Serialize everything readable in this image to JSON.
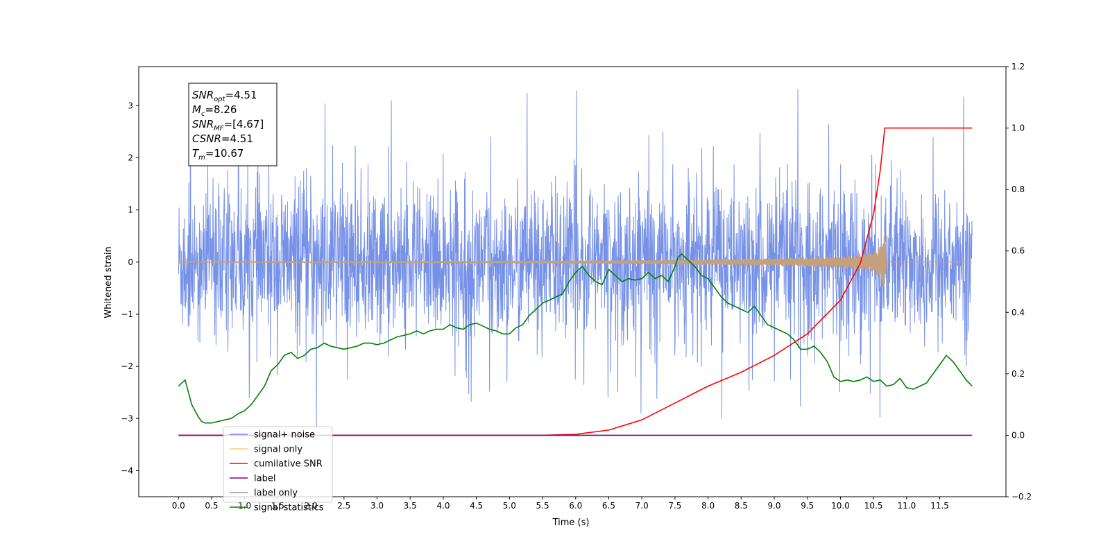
{
  "chart_data": {
    "type": "line",
    "xlabel": "Time (s)",
    "ylabel": "Whitened strain",
    "xlim": [
      -0.6,
      12.5
    ],
    "ylim": [
      -4.5,
      3.75
    ],
    "y2lim": [
      -0.2,
      1.2
    ],
    "x_ticks": [
      "0.0",
      "0.5",
      "1.0",
      "1.5",
      "2.0",
      "2.5",
      "3.0",
      "3.5",
      "4.0",
      "4.5",
      "5.0",
      "5.5",
      "6.0",
      "6.5",
      "7.0",
      "7.5",
      "8.0",
      "8.5",
      "9.0",
      "9.5",
      "10.0",
      "10.5",
      "11.0",
      "11.5"
    ],
    "x_tick_values": [
      0,
      0.5,
      1,
      1.5,
      2,
      2.5,
      3,
      3.5,
      4,
      4.5,
      5,
      5.5,
      6,
      6.5,
      7,
      7.5,
      8,
      8.5,
      9,
      9.5,
      10,
      10.5,
      11,
      11.5
    ],
    "y_ticks": [
      "3",
      "2",
      "1",
      "0",
      "−1",
      "−2",
      "−3",
      "−4"
    ],
    "y_tick_values": [
      3,
      2,
      1,
      0,
      -1,
      -2,
      -3,
      -4
    ],
    "y2_ticks": [
      "1.2",
      "1.0",
      "0.8",
      "0.6",
      "0.4",
      "0.2",
      "0.0",
      "−0.2"
    ],
    "y2_tick_values": [
      1.2,
      1.0,
      0.8,
      0.6,
      0.4,
      0.2,
      0.0,
      -0.2
    ],
    "annotation": {
      "lines": [
        {
          "base": "SNR",
          "sub": "opt",
          "rest": "=4.51"
        },
        {
          "base": "M",
          "sub": "c",
          "rest": "=8.26"
        },
        {
          "base": "SNR",
          "sub": "MF",
          "rest": "=[4.67]"
        },
        {
          "base": "CSNR",
          "sub": "",
          "rest": "=4.51"
        },
        {
          "base": "T",
          "sub": "m",
          "rest": "=10.67"
        }
      ]
    },
    "legend": {
      "location": "lower-left",
      "entries": [
        {
          "label": "signal+ noise",
          "color": "#6f8be6"
        },
        {
          "label": "signal only",
          "color": "#ffcc80"
        },
        {
          "label": "cumilative SNR",
          "color": "#ff0000"
        },
        {
          "label": "label",
          "color": "#800080"
        },
        {
          "label": "label only",
          "color": "#999999"
        },
        {
          "label": "signal statistics",
          "color": "#008000"
        }
      ]
    },
    "series": [
      {
        "name": "signal+ noise",
        "axis": "left",
        "color": "#6f8be6",
        "x_range": [
          0,
          11.99
        ],
        "typical_envelope": [
          -1.6,
          1.6
        ],
        "noise_std": 0.75
      },
      {
        "name": "signal only",
        "axis": "left",
        "color": "#c4a17a",
        "x_range": [
          0,
          11.99
        ],
        "amplitude_envelope": {
          "x": [
            0,
            3,
            5,
            6,
            7,
            8,
            9,
            9.5,
            10,
            10.3,
            10.5,
            10.6,
            10.67,
            10.7,
            11.99
          ],
          "amp": [
            0.005,
            0.012,
            0.02,
            0.03,
            0.04,
            0.05,
            0.07,
            0.09,
            0.11,
            0.14,
            0.2,
            0.3,
            0.6,
            0.0,
            0.0
          ]
        }
      },
      {
        "name": "cumilative SNR",
        "axis": "right",
        "color": "#ff0000",
        "x": [
          0,
          5.5,
          6.0,
          6.5,
          7.0,
          7.5,
          8.0,
          8.5,
          9.0,
          9.5,
          10.0,
          10.3,
          10.5,
          10.6,
          10.67,
          11.99
        ],
        "values": [
          0,
          0,
          0.003,
          0.017,
          0.05,
          0.105,
          0.16,
          0.205,
          0.26,
          0.33,
          0.44,
          0.56,
          0.72,
          0.86,
          1.0,
          1.0
        ]
      },
      {
        "name": "label",
        "axis": "right",
        "color": "#800080",
        "x": [
          0,
          11.99
        ],
        "values": [
          0,
          0
        ]
      },
      {
        "name": "signal statistics",
        "axis": "right",
        "color": "#008000",
        "x": [
          0,
          0.1,
          0.15,
          0.2,
          0.3,
          0.35,
          0.4,
          0.5,
          0.6,
          0.7,
          0.8,
          0.9,
          1.0,
          1.1,
          1.2,
          1.3,
          1.4,
          1.5,
          1.6,
          1.7,
          1.8,
          1.9,
          2.0,
          2.1,
          2.2,
          2.3,
          2.4,
          2.5,
          2.6,
          2.7,
          2.8,
          2.9,
          3.0,
          3.1,
          3.2,
          3.3,
          3.4,
          3.5,
          3.6,
          3.7,
          3.8,
          3.9,
          4.0,
          4.1,
          4.2,
          4.3,
          4.4,
          4.5,
          4.6,
          4.7,
          4.8,
          4.9,
          5.0,
          5.1,
          5.2,
          5.3,
          5.4,
          5.5,
          5.6,
          5.7,
          5.8,
          5.9,
          6.0,
          6.1,
          6.2,
          6.3,
          6.4,
          6.5,
          6.6,
          6.7,
          6.8,
          6.9,
          7.0,
          7.1,
          7.2,
          7.3,
          7.4,
          7.5,
          7.55,
          7.6,
          7.7,
          7.8,
          7.9,
          8.0,
          8.1,
          8.2,
          8.3,
          8.4,
          8.5,
          8.6,
          8.7,
          8.8,
          8.9,
          9.0,
          9.1,
          9.2,
          9.3,
          9.4,
          9.5,
          9.6,
          9.7,
          9.8,
          9.9,
          10.0,
          10.1,
          10.2,
          10.3,
          10.4,
          10.5,
          10.6,
          10.7,
          10.8,
          10.9,
          11.0,
          11.1,
          11.2,
          11.3,
          11.4,
          11.5,
          11.6,
          11.7,
          11.8,
          11.9,
          11.99
        ],
        "values": [
          0.16,
          0.18,
          0.14,
          0.1,
          0.06,
          0.045,
          0.04,
          0.04,
          0.045,
          0.05,
          0.055,
          0.07,
          0.08,
          0.1,
          0.13,
          0.16,
          0.21,
          0.23,
          0.26,
          0.27,
          0.25,
          0.26,
          0.28,
          0.285,
          0.3,
          0.29,
          0.285,
          0.28,
          0.285,
          0.29,
          0.3,
          0.3,
          0.295,
          0.3,
          0.31,
          0.32,
          0.325,
          0.33,
          0.34,
          0.33,
          0.34,
          0.345,
          0.345,
          0.36,
          0.35,
          0.345,
          0.36,
          0.365,
          0.355,
          0.345,
          0.34,
          0.33,
          0.33,
          0.35,
          0.36,
          0.39,
          0.41,
          0.43,
          0.44,
          0.45,
          0.46,
          0.5,
          0.53,
          0.55,
          0.52,
          0.5,
          0.49,
          0.54,
          0.52,
          0.5,
          0.51,
          0.505,
          0.51,
          0.53,
          0.51,
          0.52,
          0.5,
          0.55,
          0.58,
          0.59,
          0.57,
          0.55,
          0.52,
          0.51,
          0.48,
          0.45,
          0.43,
          0.42,
          0.41,
          0.4,
          0.42,
          0.39,
          0.36,
          0.35,
          0.34,
          0.33,
          0.31,
          0.28,
          0.28,
          0.29,
          0.27,
          0.24,
          0.19,
          0.175,
          0.18,
          0.175,
          0.18,
          0.19,
          0.175,
          0.18,
          0.16,
          0.165,
          0.185,
          0.155,
          0.15,
          0.16,
          0.17,
          0.2,
          0.23,
          0.26,
          0.24,
          0.21,
          0.18,
          0.16
        ]
      }
    ]
  }
}
